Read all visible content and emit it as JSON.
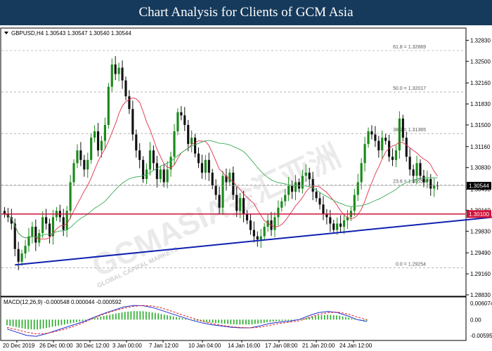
{
  "header": {
    "title": "Chart Analysis for Clients of GCM Asia"
  },
  "symbol_info": "GBPUSD,H4  1.30543 1.30547 1.30540 1.30544",
  "macd_info": "MACD(12,26,9) -0.000548 0.000044 -0.000592",
  "watermark": {
    "main": "GCMASIA金汇亚洲",
    "sub": "GLOBAL CAPITAL MARKETS"
  },
  "colors": {
    "bull": "#1a8a1a",
    "bear": "#111111",
    "ma_fast": "#e0304a",
    "ma_slow": "#3aaa55",
    "support": "#d0103a",
    "trendline": "#1020b0",
    "macd_line": "#2030d0",
    "signal_line": "#e02020",
    "histogram": "#22aa22",
    "title_bg": "#163a5c"
  },
  "chart_data": {
    "type": "candlestick",
    "symbol": "GBPUSD",
    "timeframe": "H4",
    "ylim": [
      1.2883,
      1.33
    ],
    "y_ticks": [
      "1.32830",
      "1.32500",
      "1.32160",
      "1.31830",
      "1.31500",
      "1.31160",
      "1.30830",
      "1.30490",
      "1.30160",
      "1.29830",
      "1.29490",
      "1.29160",
      "1.28830"
    ],
    "x_ticks": [
      "20 Dec 2019",
      "26 Dec 00:00",
      "30 Dec 12:00",
      "3 Jan 00:00",
      "7 Jan 12:00",
      "10 Jan 04:00",
      "14 Jan 16:00",
      "17 Jan 08:00",
      "21 Jan 20:00",
      "24 Jan 12:00"
    ],
    "fibonacci": [
      {
        "label": "61.8 = 1.32669",
        "value": 1.32669
      },
      {
        "label": "50.0 = 1.32017",
        "value": 1.32017
      },
      {
        "label": "38.2 = 1.31365",
        "value": 1.31365
      },
      {
        "label": "23.6 = 1.30558",
        "value": 1.30558
      },
      {
        "label": "0.0 = 1.29254",
        "value": 1.29254
      }
    ],
    "support_level": {
      "value": 1.301,
      "label": "1.30100"
    },
    "current_price": {
      "value": 1.30544,
      "label": "1.30544"
    },
    "trendline": {
      "from": [
        3,
        1.293
      ],
      "to": [
        150,
        1.301
      ]
    },
    "candles_close": [
      1.301,
      1.3005,
      1.2995,
      1.2955,
      1.2935,
      1.2948,
      1.296,
      1.2975,
      1.299,
      1.2965,
      1.298,
      1.3005,
      1.2995,
      1.2975,
      1.3005,
      1.3015,
      1.3005,
      1.2985,
      1.3015,
      1.306,
      1.309,
      1.311,
      1.3095,
      1.308,
      1.3095,
      1.313,
      1.314,
      1.311,
      1.3125,
      1.315,
      1.321,
      1.3245,
      1.323,
      1.324,
      1.322,
      1.3195,
      1.3175,
      1.3135,
      1.311,
      1.3095,
      1.3065,
      1.308,
      1.311,
      1.309,
      1.3065,
      1.308,
      1.306,
      1.308,
      1.31,
      1.314,
      1.317,
      1.3165,
      1.315,
      1.312,
      1.313,
      1.3105,
      1.309,
      1.3075,
      1.3095,
      1.3075,
      1.3055,
      1.304,
      1.302,
      1.307,
      1.306,
      1.3075,
      1.304,
      1.3015,
      1.3035,
      1.301,
      1.3,
      1.2985,
      1.2975,
      1.297,
      1.2975,
      1.299,
      1.3,
      1.2985,
      1.3005,
      1.302,
      1.303,
      1.304,
      1.3055,
      1.3045,
      1.306,
      1.305,
      1.307,
      1.3075,
      1.3065,
      1.3045,
      1.3035,
      1.3025,
      1.301,
      1.3005,
      1.2995,
      1.2985,
      1.2995,
      1.299,
      1.3,
      1.3005,
      1.3015,
      1.304,
      1.306,
      1.309,
      1.312,
      1.314,
      1.3135,
      1.3125,
      1.311,
      1.313,
      1.3125,
      1.31,
      1.3095,
      1.311,
      1.316,
      1.313,
      1.31,
      1.308,
      1.307,
      1.309,
      1.307,
      1.306,
      1.3065,
      1.305,
      1.3055,
      1.3054
    ],
    "macd_ylim": [
      -0.00595,
      0.00607
    ],
    "macd_ticks": [
      "0.006074",
      "0.00",
      "-0.005951"
    ],
    "macd_line": [
      -0.003,
      -0.004,
      -0.005,
      -0.0053,
      -0.0045,
      -0.0035,
      -0.0025,
      -0.0015,
      -0.0005,
      0.0008,
      0.002,
      0.003,
      0.004,
      0.0045,
      0.0044,
      0.0038,
      0.0028,
      0.0018,
      0.0008,
      -0.0002,
      -0.001,
      -0.0016,
      -0.002,
      -0.0024,
      -0.0026,
      -0.0026,
      -0.002,
      -0.0012,
      -0.0008,
      -0.0005,
      0.0,
      0.0012,
      0.0022,
      0.0026,
      0.0022,
      0.0012,
      0.0,
      -0.0006
    ],
    "signal_line": [
      -0.0025,
      -0.0032,
      -0.004,
      -0.0045,
      -0.0044,
      -0.0038,
      -0.003,
      -0.002,
      -0.0008,
      0.0006,
      0.0018,
      0.0028,
      0.0036,
      0.0042,
      0.0045,
      0.0043,
      0.0036,
      0.0026,
      0.0015,
      0.0005,
      -0.0004,
      -0.0012,
      -0.0018,
      -0.0022,
      -0.0025,
      -0.0026,
      -0.0024,
      -0.0018,
      -0.0012,
      -0.0008,
      -0.0004,
      0.0006,
      0.0016,
      0.0022,
      0.0024,
      0.0018,
      0.0008,
      0.0
    ]
  }
}
